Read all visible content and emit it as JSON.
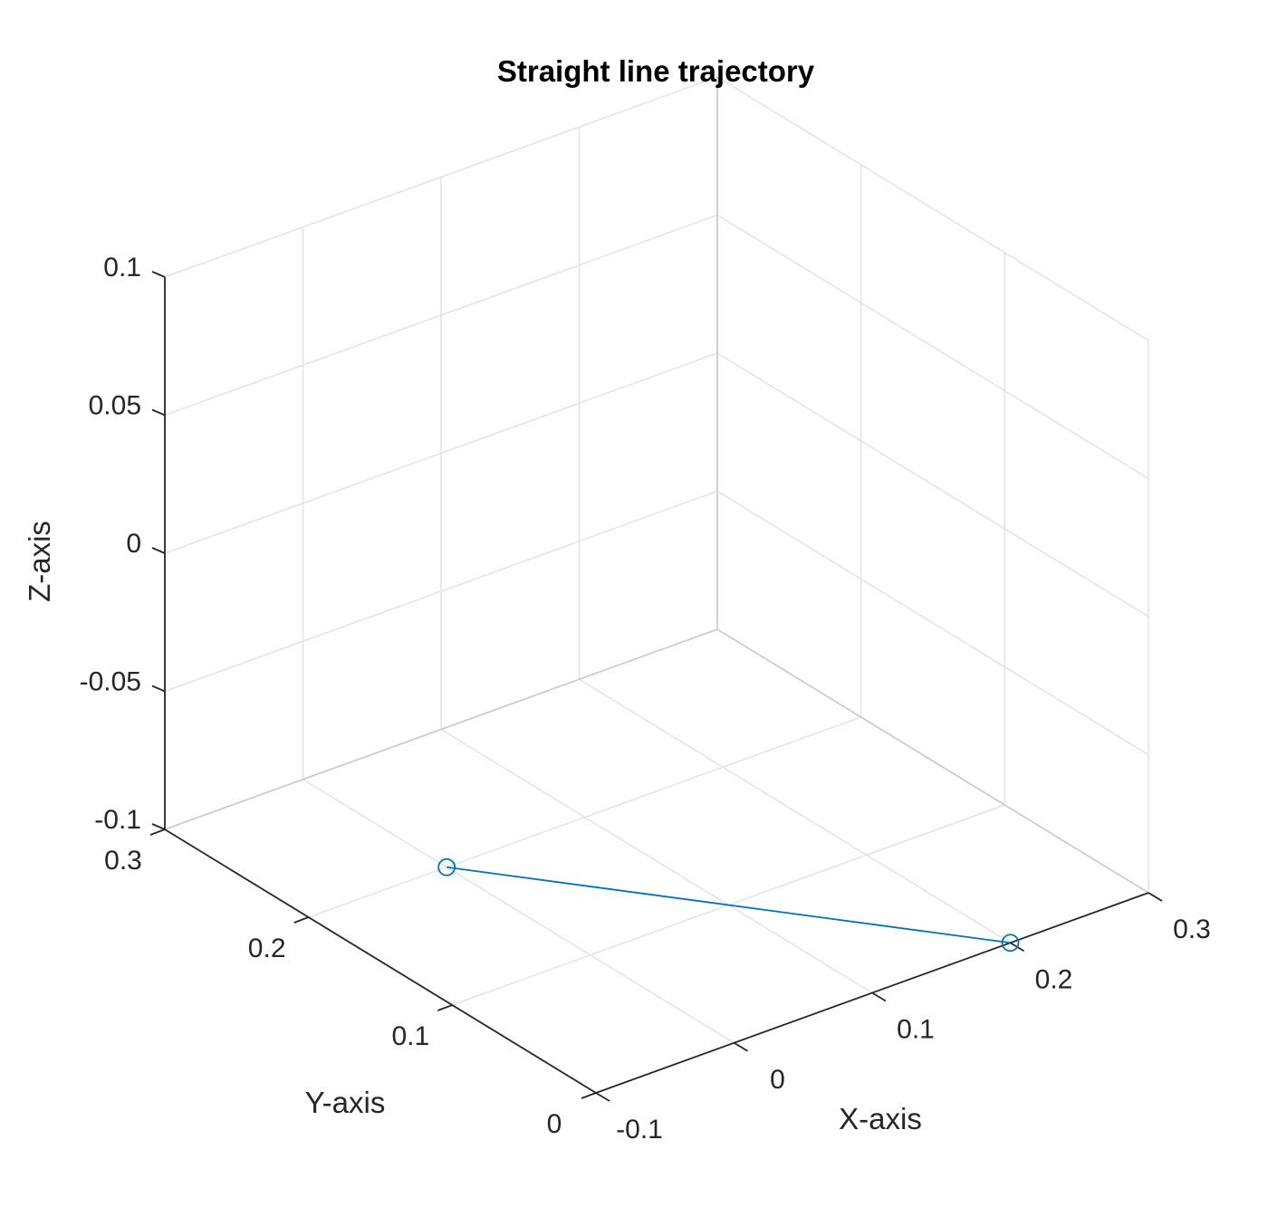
{
  "chart_data": {
    "type": "line3d",
    "title": "Straight line trajectory",
    "xlabel": "X-axis",
    "ylabel": "Y-axis",
    "zlabel": "Z-axis",
    "xlim": [
      -0.1,
      0.3
    ],
    "ylim": [
      0,
      0.3
    ],
    "zlim": [
      -0.1,
      0.1
    ],
    "xticks": [
      "-0.1",
      "0",
      "0.1",
      "0.2",
      "0.3"
    ],
    "yticks": [
      "0",
      "0.1",
      "0.2",
      "0.3"
    ],
    "zticks": [
      "-0.1",
      "-0.05",
      "0",
      "0.05",
      "0.1"
    ],
    "grid": true,
    "marker": "circle",
    "series": [
      {
        "points": [
          {
            "x": 0.0,
            "y": 0.2,
            "z": -0.1
          },
          {
            "x": 0.2,
            "y": 0.0,
            "z": -0.1
          }
        ]
      }
    ],
    "colors": {
      "line": "#0072BD",
      "grid": "#e3e3e3",
      "axis": "#262626"
    }
  }
}
